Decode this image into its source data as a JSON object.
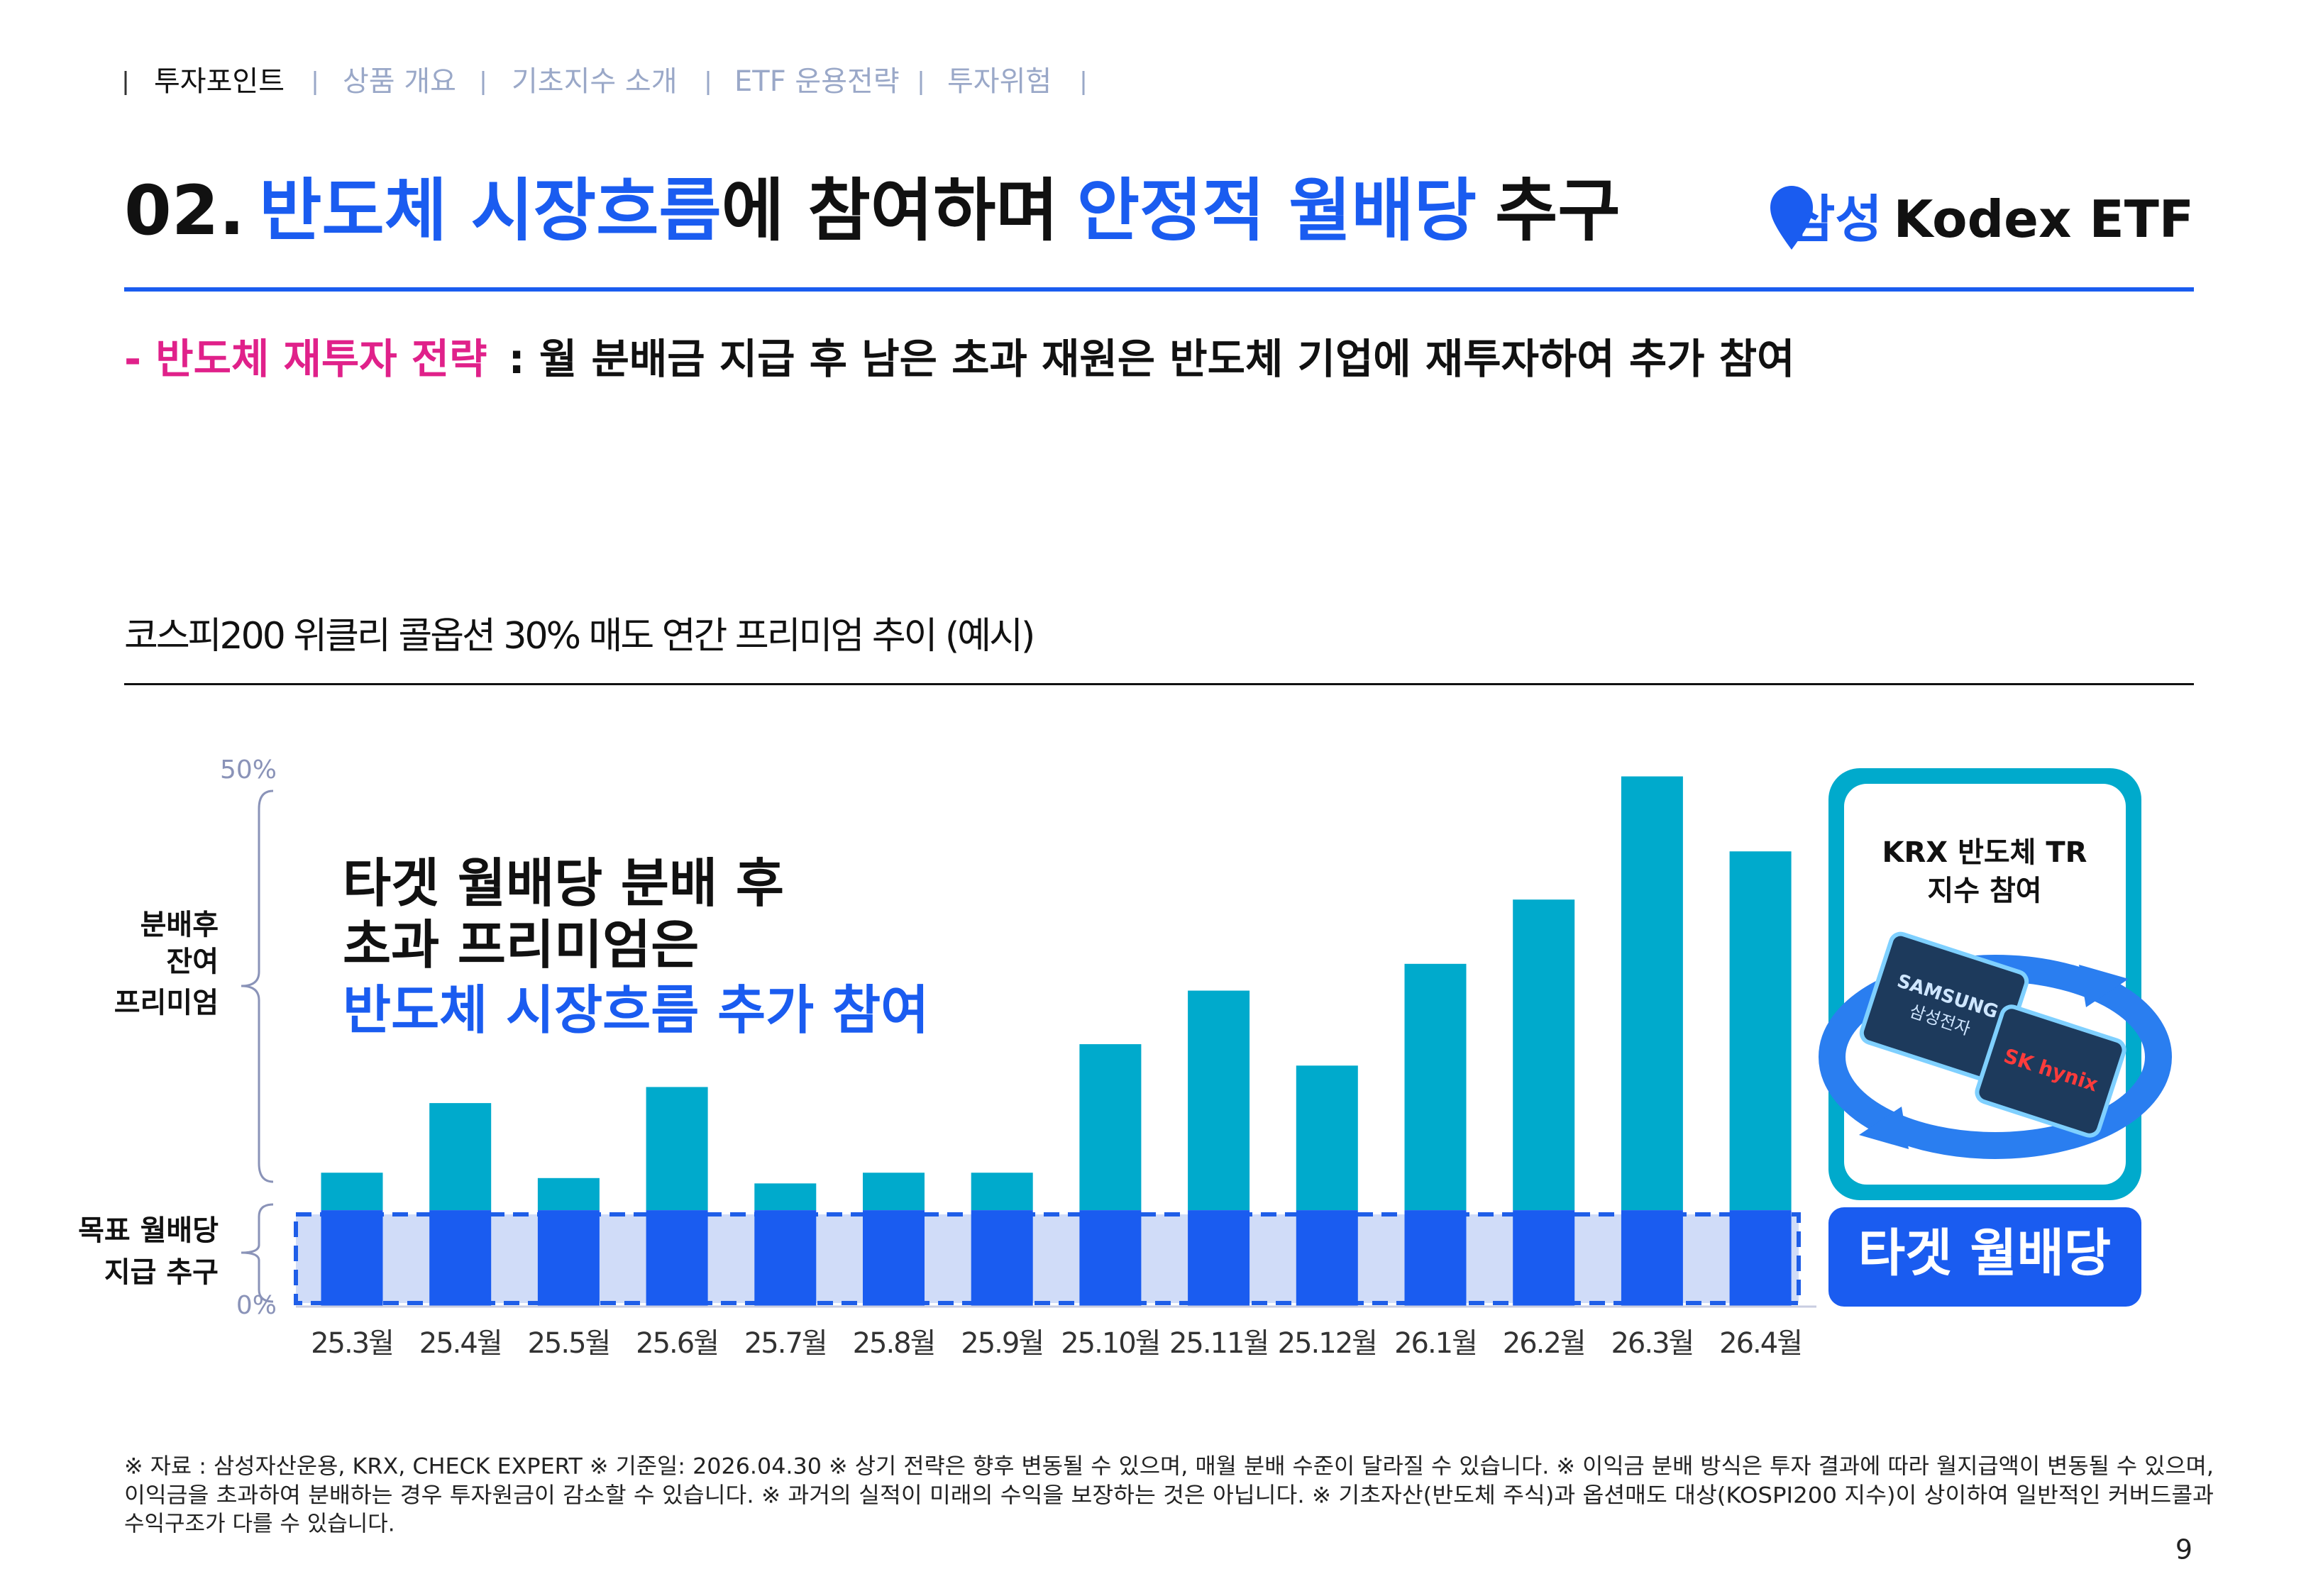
{
  "nav": {
    "items": [
      "투자포인트",
      "상품 개요",
      "기초지수 소개",
      "ETF 운용전략",
      "투자위험"
    ]
  },
  "title_parts": [
    "02.",
    "반도체 시장흐름",
    "에 참여하며",
    "안정적 월배당",
    "추구"
  ],
  "logo": {
    "brand": "삼성",
    "name": "Kodex ETF"
  },
  "subtitle": {
    "label": "- 반도체 재투자 전략",
    "text": ": 월 분배금 지급 후 남은 초과 재원은 반도체 기업에 재투자하여 추가 참여"
  },
  "chart_data": {
    "type": "bar",
    "stacked": true,
    "title": "코스피200 위클리 콜옵션 30% 매도 연간 프리미엄 추이 (예시)",
    "annotation": [
      "타겟 월배당 분배 후",
      "초과 프리미엄은",
      "반도체 시장흐름 추가 참여"
    ],
    "categories": [
      "25.3월",
      "25.4월",
      "25.5월",
      "25.6월",
      "25.7월",
      "25.8월",
      "25.9월",
      "25.10월",
      "25.11월",
      "25.12월",
      "26.1월",
      "26.2월",
      "26.3월",
      "26.4월"
    ],
    "series": [
      {
        "name": "목표 월배당\n지급 추구",
        "color": "#1a5cf0",
        "values": [
          9,
          9,
          9,
          9,
          9,
          9,
          9,
          9,
          9,
          9,
          9,
          9,
          9,
          9
        ]
      },
      {
        "name": "분배후\n잔여\n프리미엄",
        "color": "#00aacc",
        "values": [
          3.5,
          10,
          3,
          11.5,
          2.5,
          3.5,
          3.5,
          15.5,
          20.5,
          13.5,
          23,
          29,
          40.5,
          33.5
        ]
      }
    ],
    "ylim": [
      0,
      50
    ],
    "yticks": [
      {
        "value": 0,
        "label": "0%"
      },
      {
        "value": 50,
        "label": "50%"
      }
    ],
    "grid": false
  },
  "side_panel": {
    "heading": [
      "KRX 반도체 TR",
      "지수 참여"
    ],
    "chips": [
      "SAMSUNG",
      "삼성전자",
      "SK hynix"
    ],
    "button": "타겟 월배당"
  },
  "footnote": [
    "※ 자료 : 삼성자산운용, KRX, CHECK EXPERT ※ 기준일: 2026.04.30 ※ 상기 전략은 향후 변동될 수 있으며, 매월 분배 수준이 달라질 수 있습니다. ※ 이익금 분배 방식은 투자 결과에 따라 월지급액이 변동될 수 있으며,",
    "이익금을 초과하여 분배하는 경우 투자원금이 감소할 수 있습니다. ※ 과거의 실적이 미래의 수익을 보장하는 것은 아닙니다. ※ 기초자산(반도체 주식)과 옵션매도 대상(KOSPI200 지수)이 상이하여 일반적인 커버드콜과",
    "수익구조가 다를 수 있습니다."
  ],
  "page_number": "9"
}
